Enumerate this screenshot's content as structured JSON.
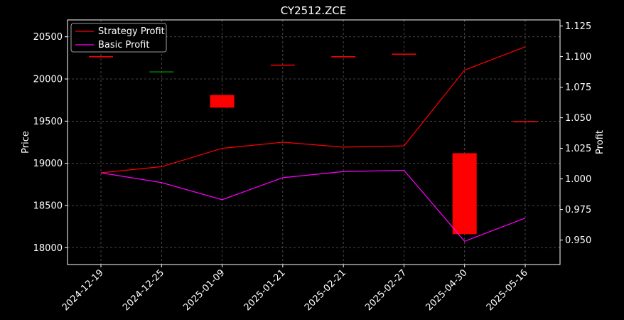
{
  "chart_data": {
    "type": "line",
    "title": "CY2512.ZCE",
    "ylabel_left": "Price",
    "ylabel_right": "Profit",
    "categories": [
      "2024-12-19",
      "2024-12-25",
      "2025-01-09",
      "2025-01-21",
      "2025-02-21",
      "2025-02-27",
      "2025-04-30",
      "2025-05-16"
    ],
    "left_axis": {
      "ylim": [
        17800,
        20700
      ],
      "ticks": [
        18000,
        18500,
        19000,
        19500,
        20000,
        20500
      ]
    },
    "right_axis": {
      "ylim": [
        0.93,
        1.13
      ],
      "ticks": [
        "0.950",
        "0.975",
        "1.000",
        "1.025",
        "1.050",
        "1.075",
        "1.100",
        "1.125"
      ]
    },
    "series": [
      {
        "name": "Strategy Profit",
        "color": "#ff0000",
        "axis": "right",
        "values": [
          1.005,
          1.01,
          1.025,
          1.03,
          1.026,
          1.027,
          1.089,
          1.108
        ]
      },
      {
        "name": "Basic Profit",
        "color": "#ff00ff",
        "axis": "right",
        "values": [
          1.005,
          0.997,
          0.983,
          1.001,
          1.006,
          1.007,
          0.949,
          0.968
        ]
      }
    ],
    "candles": [
      {
        "open": 20270,
        "close": 20260,
        "color": "#ff0000"
      },
      {
        "open": 20090,
        "close": 20085,
        "color": "#008000"
      },
      {
        "open": 19810,
        "close": 19660,
        "color": "#ff0000"
      },
      {
        "open": 20170,
        "close": 20160,
        "color": "#ff0000"
      },
      {
        "open": 20270,
        "close": 20265,
        "color": "#ff0000"
      },
      {
        "open": 20300,
        "close": 20295,
        "color": "#ff0000"
      },
      {
        "open": 19120,
        "close": 18160,
        "color": "#ff0000"
      },
      {
        "open": 19500,
        "close": 19495,
        "color": "#ff0000"
      }
    ],
    "legend": {
      "position": "top-left",
      "entries": [
        "Strategy Profit",
        "Basic Profit"
      ]
    },
    "grid": true,
    "background": "#000000",
    "text_color": "#ffffff"
  }
}
